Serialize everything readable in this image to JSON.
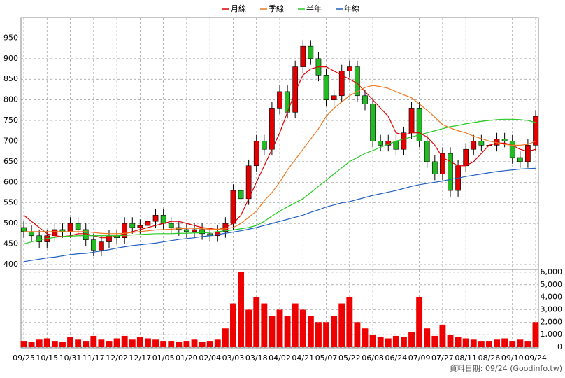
{
  "chart_data": {
    "type": "candlestick",
    "categories": [
      "09/25",
      null,
      null,
      "10/15",
      null,
      null,
      "10/31",
      null,
      null,
      "11/17",
      null,
      null,
      "12/02",
      null,
      null,
      "12/17",
      null,
      null,
      "01/05",
      null,
      null,
      "01/20",
      null,
      null,
      "02/04",
      null,
      null,
      "03/03",
      null,
      null,
      "03/18",
      null,
      null,
      "04/02",
      null,
      null,
      "04/21",
      null,
      null,
      "05/07",
      null,
      null,
      "05/22",
      null,
      null,
      "06/08",
      null,
      null,
      "06/24",
      null,
      null,
      "07/09",
      null,
      null,
      "07/27",
      null,
      null,
      "08/11",
      null,
      null,
      "08/26",
      null,
      null,
      "09/10",
      null,
      null,
      "09/24"
    ],
    "open": [
      490,
      480,
      470,
      455,
      470,
      485,
      480,
      500,
      485,
      460,
      435,
      455,
      470,
      465,
      500,
      490,
      495,
      505,
      520,
      500,
      490,
      485,
      480,
      485,
      475,
      470,
      480,
      500,
      580,
      560,
      640,
      700,
      680,
      780,
      820,
      770,
      880,
      930,
      900,
      860,
      800,
      810,
      870,
      880,
      810,
      790,
      700,
      690,
      700,
      680,
      720,
      780,
      700,
      650,
      620,
      670,
      580,
      640,
      680,
      700,
      690,
      690,
      705,
      700,
      660,
      650,
      690
    ],
    "high": [
      505,
      495,
      485,
      485,
      500,
      500,
      515,
      515,
      500,
      475,
      470,
      485,
      485,
      515,
      515,
      510,
      520,
      535,
      535,
      515,
      505,
      500,
      500,
      500,
      490,
      495,
      515,
      595,
      595,
      655,
      715,
      715,
      795,
      835,
      835,
      895,
      945,
      945,
      915,
      875,
      825,
      885,
      895,
      895,
      825,
      805,
      715,
      715,
      715,
      735,
      795,
      795,
      715,
      665,
      685,
      685,
      655,
      695,
      715,
      715,
      705,
      720,
      720,
      715,
      675,
      705,
      775
    ],
    "low": [
      465,
      455,
      440,
      440,
      455,
      465,
      465,
      470,
      445,
      420,
      420,
      440,
      450,
      450,
      475,
      475,
      480,
      490,
      485,
      475,
      470,
      465,
      465,
      460,
      455,
      455,
      465,
      485,
      545,
      545,
      625,
      665,
      665,
      765,
      755,
      755,
      865,
      885,
      845,
      785,
      785,
      795,
      855,
      795,
      775,
      685,
      675,
      675,
      665,
      665,
      705,
      685,
      635,
      605,
      605,
      565,
      565,
      625,
      665,
      675,
      675,
      675,
      685,
      645,
      635,
      635,
      675
    ],
    "close": [
      480,
      470,
      455,
      470,
      485,
      480,
      500,
      485,
      460,
      435,
      455,
      470,
      465,
      500,
      490,
      495,
      505,
      520,
      500,
      490,
      485,
      480,
      485,
      475,
      470,
      480,
      500,
      580,
      560,
      640,
      700,
      680,
      780,
      820,
      770,
      880,
      930,
      900,
      860,
      800,
      810,
      870,
      880,
      810,
      790,
      700,
      690,
      700,
      680,
      720,
      780,
      700,
      650,
      620,
      670,
      580,
      640,
      680,
      700,
      690,
      690,
      705,
      700,
      660,
      650,
      690,
      760
    ],
    "up_color": "#e00000",
    "down_color": "#22bb22",
    "ylim": [
      388,
      1000
    ],
    "yticks": [
      400,
      450,
      500,
      550,
      600,
      650,
      700,
      750,
      800,
      850,
      900,
      950
    ],
    "grid": true,
    "series": [
      {
        "name": "月線",
        "color": "#e00000",
        "values": [
          520,
          505,
          490,
          475,
          470,
          468,
          470,
          475,
          475,
          470,
          465,
          465,
          470,
          475,
          480,
          485,
          490,
          495,
          500,
          505,
          505,
          500,
          495,
          490,
          488,
          485,
          490,
          500,
          520,
          560,
          600,
          640,
          680,
          720,
          770,
          820,
          860,
          875,
          880,
          880,
          870,
          860,
          850,
          840,
          820,
          800,
          780,
          760,
          720,
          715,
          720,
          720,
          710,
          690,
          660,
          650,
          640,
          640,
          650,
          670,
          690,
          695,
          695,
          690,
          680,
          675,
          680
        ]
      },
      {
        "name": "季線",
        "color": "#f07820",
        "values": [
          480,
          480,
          480,
          480,
          480,
          480,
          480,
          480,
          480,
          478,
          476,
          475,
          475,
          476,
          478,
          480,
          482,
          484,
          485,
          486,
          487,
          488,
          488,
          487,
          486,
          486,
          487,
          490,
          500,
          515,
          530,
          555,
          575,
          600,
          630,
          655,
          680,
          705,
          730,
          760,
          780,
          795,
          810,
          820,
          830,
          835,
          832,
          828,
          820,
          812,
          805,
          790,
          775,
          758,
          740,
          732,
          725,
          720,
          712,
          706,
          700,
          696,
          692,
          690,
          690,
          692,
          700
        ]
      },
      {
        "name": "半年",
        "color": "#22cc22",
        "values": [
          450,
          455,
          460,
          463,
          466,
          468,
          469,
          470,
          470,
          470,
          470,
          470,
          470,
          471,
          472,
          473,
          474,
          475,
          475,
          475,
          476,
          476,
          477,
          477,
          478,
          480,
          482,
          484,
          487,
          490,
          495,
          505,
          518,
          530,
          540,
          550,
          560,
          575,
          590,
          605,
          620,
          635,
          650,
          660,
          670,
          677,
          685,
          692,
          700,
          705,
          710,
          715,
          720,
          725,
          730,
          735,
          738,
          742,
          745,
          748,
          750,
          752,
          753,
          753,
          752,
          750,
          745
        ]
      },
      {
        "name": "年線",
        "color": "#1f5fbf",
        "values": [
          407,
          410,
          413,
          416,
          418,
          421,
          424,
          426,
          427,
          430,
          433,
          436,
          440,
          443,
          446,
          448,
          450,
          452,
          455,
          458,
          461,
          463,
          465,
          468,
          470,
          473,
          476,
          479,
          482,
          486,
          490,
          495,
          500,
          505,
          510,
          515,
          520,
          527,
          533,
          540,
          545,
          550,
          553,
          558,
          563,
          568,
          572,
          576,
          580,
          585,
          590,
          594,
          597,
          600,
          603,
          607,
          610,
          614,
          617,
          620,
          623,
          626,
          628,
          630,
          632,
          633,
          634
        ]
      }
    ],
    "volume": {
      "color": "#ee0000",
      "values": [
        500,
        400,
        600,
        700,
        500,
        400,
        800,
        600,
        500,
        900,
        600,
        500,
        700,
        900,
        600,
        800,
        700,
        600,
        500,
        500,
        400,
        500,
        600,
        400,
        500,
        600,
        1500,
        3500,
        6000,
        3000,
        4000,
        3500,
        2500,
        3000,
        2500,
        3500,
        3000,
        2500,
        2000,
        2000,
        2500,
        3500,
        4000,
        2000,
        1500,
        1000,
        800,
        700,
        900,
        800,
        1200,
        4000,
        1500,
        900,
        1800,
        1000,
        800,
        700,
        600,
        500,
        500,
        600,
        700,
        500,
        600,
        500,
        2000
      ],
      "ylim": [
        0,
        6500
      ],
      "yticks": [
        0,
        {
          "value": 1000,
          "label": "1,000"
        },
        {
          "value": 2000,
          "label": "2,000"
        },
        {
          "value": 3000,
          "label": "3,000"
        },
        {
          "value": 4000,
          "label": "4,000"
        },
        {
          "value": 5000,
          "label": "5,000"
        },
        {
          "value": 6000,
          "label": "6,000"
        }
      ]
    },
    "footnote": "資料日期: 09/24  (Goodinfo.tw)"
  }
}
